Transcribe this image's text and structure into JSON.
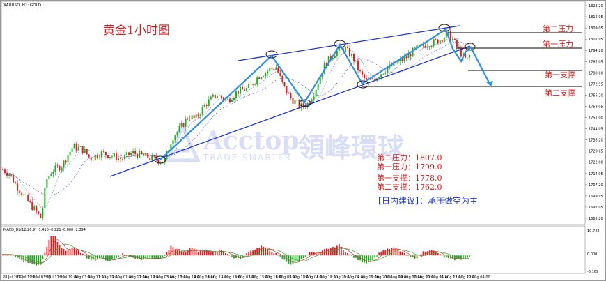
{
  "symbol_header": "XAUUSD, H1: GOLD",
  "subpanel_header": "MACD_DL(12,26,9) -1.410 -0.221 -0.000 -2.394",
  "title": "黄金1小时图",
  "watermark": {
    "brand": "Acctop",
    "tagline": "TRADE SMARTER",
    "chinese": "領峰環球"
  },
  "levels": [
    {
      "label": "第二压力",
      "value": 1807.0
    },
    {
      "label": "第一压力",
      "value": 1799.0
    },
    {
      "label": "第一支撑",
      "value": 1778.0
    },
    {
      "label": "第二支撑",
      "value": 1762.0
    }
  ],
  "summary": [
    "第二压力：1807.0",
    "第一压力：1799.0",
    "第一支撑：1778.0",
    "第二支撑：1762.0"
  ],
  "suggestion": "【日内建议】：承压做空为主",
  "colors": {
    "up": "#22aa22",
    "down": "#e02020",
    "trend": "#1d35c8",
    "arrow": "#2f8fe0",
    "level_text": "#d02020",
    "suggestion_text": "#1d35c8"
  },
  "chart_data": {
    "type": "candlestick",
    "y_ticks": [
      "1823.20",
      "1816.05",
      "1809.05",
      "1801.95",
      "1794.20",
      "1787.05",
      "1780.00",
      "1772.95",
      "1765.20",
      "1758.05",
      "1751.00",
      "1744.05",
      "1736.20",
      "1729.05",
      "1722.00",
      "1714.95",
      "1707.20",
      "1699.95",
      "1692.95",
      "1685.20"
    ],
    "ylim": [
      1683,
      1825
    ],
    "x_ticks": [
      "28 Jul 2022",
      "28 Jul 19:00",
      "29 Jul 03:00",
      "29 Jul 11:00",
      "29 Jul 19:00",
      "1 Aug 03:00",
      "1 Aug 11:00",
      "1 Aug 19:00",
      "2 Aug 03:00",
      "2 Aug 11:00",
      "2 Aug 19:00",
      "3 Aug 03:00",
      "3 Aug 11:00",
      "3 Aug 19:00",
      "4 Aug 03:00",
      "4 Aug 11:00",
      "4 Aug 19:00",
      "5 Aug 03:00",
      "5 Aug 11:00",
      "5 Aug 19:00",
      "6 Aug 03:00",
      "6 Aug 11:00",
      "8 Aug 04:00",
      "8 Aug 12:00",
      "8 Aug 20:00",
      "9 Aug 04:00",
      "9 Aug 12:00",
      "9 Aug 20:00",
      "10 Aug 04:00",
      "10 Aug 12:00",
      "10 Aug 20:00",
      "11 Aug 04:00",
      "11 Aug 12:00",
      "11 Aug 20:00",
      "12 Aug 04:00"
    ],
    "price_path": [
      [
        0,
        1717
      ],
      [
        10,
        1714
      ],
      [
        20,
        1706
      ],
      [
        30,
        1700
      ],
      [
        40,
        1694
      ],
      [
        50,
        1688
      ],
      [
        55,
        1685
      ],
      [
        62,
        1710
      ],
      [
        70,
        1716
      ],
      [
        85,
        1720
      ],
      [
        100,
        1732
      ],
      [
        115,
        1730
      ],
      [
        125,
        1724
      ],
      [
        140,
        1728
      ],
      [
        155,
        1726
      ],
      [
        170,
        1724
      ],
      [
        185,
        1728
      ],
      [
        200,
        1726
      ],
      [
        215,
        1724
      ],
      [
        230,
        1722
      ],
      [
        242,
        1738
      ],
      [
        255,
        1745
      ],
      [
        265,
        1752
      ],
      [
        275,
        1750
      ],
      [
        290,
        1760
      ],
      [
        305,
        1766
      ],
      [
        320,
        1762
      ],
      [
        335,
        1768
      ],
      [
        350,
        1770
      ],
      [
        365,
        1778
      ],
      [
        380,
        1782
      ],
      [
        390,
        1784
      ],
      [
        400,
        1772
      ],
      [
        410,
        1764
      ],
      [
        425,
        1758
      ],
      [
        435,
        1760
      ],
      [
        445,
        1768
      ],
      [
        460,
        1786
      ],
      [
        475,
        1794
      ],
      [
        488,
        1796
      ],
      [
        500,
        1790
      ],
      [
        510,
        1780
      ],
      [
        520,
        1774
      ],
      [
        532,
        1777
      ],
      [
        545,
        1782
      ],
      [
        560,
        1786
      ],
      [
        575,
        1790
      ],
      [
        590,
        1796
      ],
      [
        605,
        1799
      ],
      [
        615,
        1800
      ],
      [
        625,
        1802
      ],
      [
        635,
        1806
      ],
      [
        642,
        1802
      ],
      [
        648,
        1797
      ],
      [
        655,
        1792
      ],
      [
        662,
        1788
      ],
      [
        668,
        1793
      ]
    ],
    "macd_hist": [
      [
        0,
        0.5
      ],
      [
        10,
        0.7
      ],
      [
        20,
        -1.0
      ],
      [
        30,
        -2.5
      ],
      [
        40,
        -3.2
      ],
      [
        50,
        -4.0
      ],
      [
        55,
        -3.5
      ],
      [
        60,
        1.0
      ],
      [
        65,
        5.5
      ],
      [
        70,
        8.0
      ],
      [
        75,
        7.5
      ],
      [
        80,
        4.0
      ],
      [
        90,
        2.0
      ],
      [
        100,
        3.0
      ],
      [
        110,
        1.5
      ],
      [
        120,
        -1.0
      ],
      [
        130,
        -2.0
      ],
      [
        140,
        -0.8
      ],
      [
        150,
        -2.2
      ],
      [
        160,
        -1.5
      ],
      [
        170,
        0.8
      ],
      [
        180,
        -0.6
      ],
      [
        190,
        -1.2
      ],
      [
        200,
        -1.8
      ],
      [
        210,
        -0.8
      ],
      [
        220,
        -1.5
      ],
      [
        230,
        -0.5
      ],
      [
        240,
        3.5
      ],
      [
        250,
        2.0
      ],
      [
        260,
        1.0
      ],
      [
        270,
        3.2
      ],
      [
        280,
        1.5
      ],
      [
        290,
        2.2
      ],
      [
        300,
        1.0
      ],
      [
        310,
        2.4
      ],
      [
        320,
        0.8
      ],
      [
        330,
        -1.0
      ],
      [
        340,
        -1.4
      ],
      [
        350,
        1.4
      ],
      [
        360,
        2.5
      ],
      [
        370,
        3.8
      ],
      [
        380,
        2.0
      ],
      [
        390,
        0.7
      ],
      [
        400,
        -1.5
      ],
      [
        410,
        -3.6
      ],
      [
        420,
        -2.5
      ],
      [
        430,
        -0.8
      ],
      [
        440,
        1.5
      ],
      [
        450,
        0.5
      ],
      [
        460,
        2.5
      ],
      [
        470,
        3.0
      ],
      [
        480,
        4.2
      ],
      [
        490,
        1.2
      ],
      [
        500,
        -0.6
      ],
      [
        510,
        -2.2
      ],
      [
        520,
        -3.0
      ],
      [
        530,
        -1.4
      ],
      [
        540,
        1.8
      ],
      [
        550,
        2.5
      ],
      [
        560,
        3.0
      ],
      [
        570,
        1.2
      ],
      [
        580,
        -0.6
      ],
      [
        590,
        -1.2
      ],
      [
        600,
        1.5
      ],
      [
        610,
        2.2
      ],
      [
        620,
        1.2
      ],
      [
        630,
        -0.8
      ],
      [
        640,
        -1.5
      ],
      [
        650,
        -1.8
      ],
      [
        660,
        -1.2
      ],
      [
        668,
        -0.5
      ]
    ],
    "macd_ylim": [
      -6,
      10
    ]
  }
}
